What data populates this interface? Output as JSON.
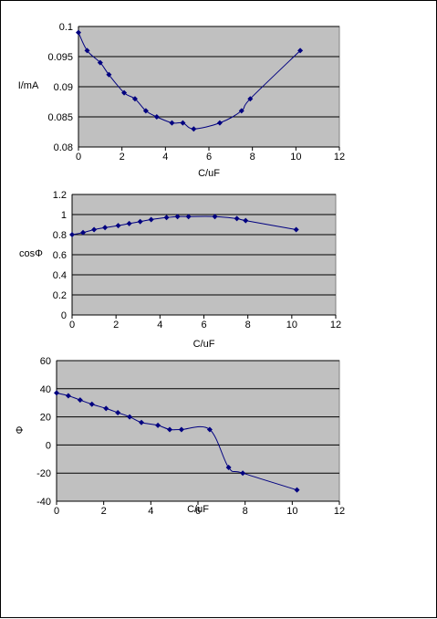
{
  "chart_data": [
    {
      "type": "line",
      "xlabel": "C/uF",
      "ylabel": "I/mA",
      "xlim": [
        0,
        12
      ],
      "ylim": [
        0.08,
        0.1
      ],
      "xticks": [
        "0",
        "2",
        "4",
        "6",
        "8",
        "10",
        "12"
      ],
      "yticks": [
        "0.08",
        "0.085",
        "0.09",
        "0.095",
        "0.1"
      ],
      "grid": true,
      "background": "#c0c0c0",
      "series_color": "#000080",
      "series": [
        {
          "x": [
            0,
            0.4,
            1,
            1.4,
            2.1,
            2.6,
            3.1,
            3.6,
            4.3,
            4.8,
            5.3,
            6.5,
            7.5,
            7.9,
            10.2
          ],
          "y": [
            0.099,
            0.096,
            0.094,
            0.092,
            0.089,
            0.088,
            0.086,
            0.085,
            0.084,
            0.084,
            0.083,
            0.084,
            0.086,
            0.088,
            0.096
          ]
        }
      ]
    },
    {
      "type": "line",
      "xlabel": "C/uF",
      "ylabel": "cosΦ",
      "xlim": [
        0,
        12
      ],
      "ylim": [
        0,
        1.2
      ],
      "xticks": [
        "0",
        "2",
        "4",
        "6",
        "8",
        "10",
        "12"
      ],
      "yticks": [
        "0",
        "0.2",
        "0.4",
        "0.6",
        "0.8",
        "1",
        "1.2"
      ],
      "grid": true,
      "background": "#c0c0c0",
      "series_color": "#000080",
      "series": [
        {
          "x": [
            0,
            0.5,
            1,
            1.5,
            2.1,
            2.6,
            3.1,
            3.6,
            4.3,
            4.8,
            5.3,
            6.5,
            7.5,
            7.9,
            10.2
          ],
          "y": [
            0.8,
            0.82,
            0.85,
            0.87,
            0.89,
            0.91,
            0.93,
            0.95,
            0.97,
            0.98,
            0.98,
            0.98,
            0.96,
            0.94,
            0.85
          ]
        }
      ]
    },
    {
      "type": "line",
      "xlabel": "C/uF",
      "ylabel": "Φ",
      "xlim": [
        0,
        12
      ],
      "ylim": [
        -40,
        60
      ],
      "xticks": [
        "0",
        "2",
        "4",
        "6",
        "8",
        "10",
        "12"
      ],
      "yticks": [
        "-40",
        "-20",
        "0",
        "20",
        "40",
        "60"
      ],
      "grid": true,
      "background": "#c0c0c0",
      "series_color": "#000080",
      "series": [
        {
          "x": [
            0,
            0.5,
            1,
            1.5,
            2.1,
            2.6,
            3.1,
            3.6,
            4.3,
            4.8,
            5.3,
            6.5,
            7.3,
            7.9,
            10.2
          ],
          "y": [
            37,
            35,
            32,
            29,
            26,
            23,
            20,
            16,
            14,
            11,
            11,
            11,
            -16,
            -20,
            -32
          ]
        }
      ]
    }
  ]
}
